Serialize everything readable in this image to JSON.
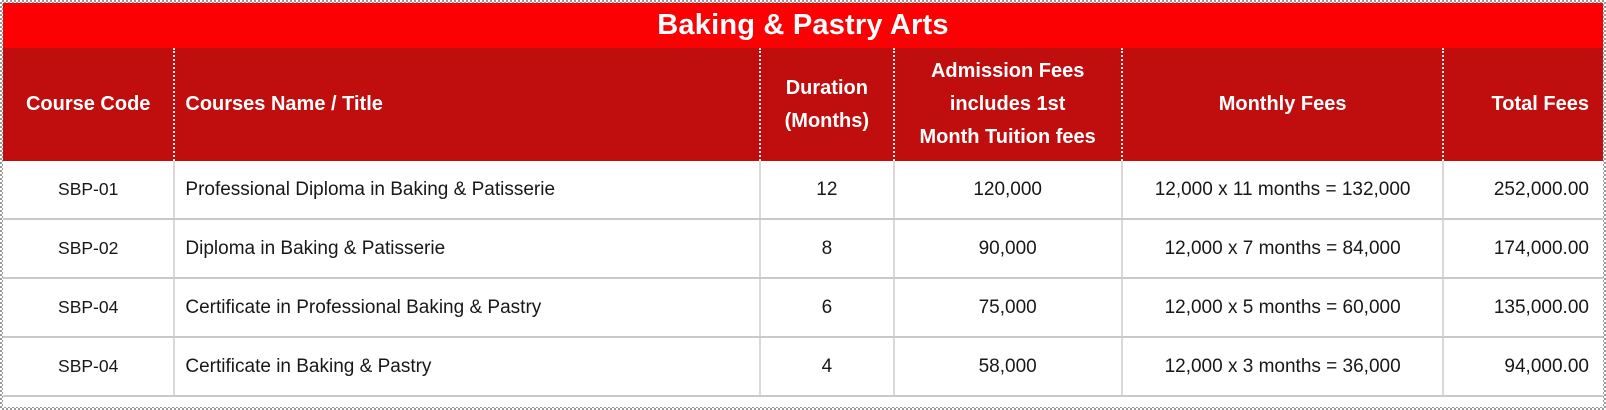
{
  "title": "Baking & Pastry Arts",
  "table": {
    "columns": [
      {
        "label": "Course Code"
      },
      {
        "label": "Courses Name / Title"
      },
      {
        "label": "Duration\n(Months)"
      },
      {
        "label": "Admission Fees\nincludes  1st\nMonth Tuition fees"
      },
      {
        "label": "Monthly Fees"
      },
      {
        "label": "Total Fees"
      }
    ],
    "rows": [
      {
        "code": "SBP-01",
        "name": "Professional Diploma in Baking & Patisserie",
        "duration": "12",
        "admission": "120,000",
        "monthly": "12,000 x 11 months = 132,000",
        "total": "252,000.00"
      },
      {
        "code": "SBP-02",
        "name": "Diploma in Baking & Patisserie",
        "duration": "8",
        "admission": "90,000",
        "monthly": "12,000 x 7 months = 84,000",
        "total": "174,000.00"
      },
      {
        "code": "SBP-04",
        "name": "Certificate in Professional Baking & Pastry",
        "duration": "6",
        "admission": "75,000",
        "monthly": "12,000 x 5 months = 60,000",
        "total": "135,000.00"
      },
      {
        "code": "SBP-04",
        "name": "Certificate in Baking & Pastry",
        "duration": "4",
        "admission": "58,000",
        "monthly": "12,000 x 3 months = 36,000",
        "total": "94,000.00"
      }
    ]
  },
  "colors": {
    "title_bar": "#fb0104",
    "header_bar": "#c00d0d",
    "header_text": "#ffffff",
    "grid_line": "#c9c9c9"
  }
}
